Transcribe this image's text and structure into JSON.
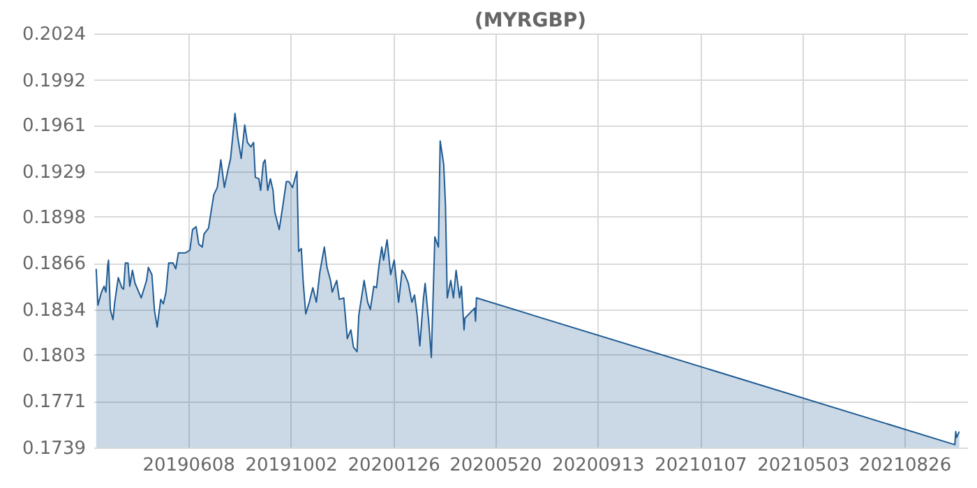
{
  "chart_data": {
    "type": "area",
    "title": "(MYRGBP)",
    "x": [
      "2019-02-24",
      "2019-02-26",
      "2019-03-02",
      "2019-03-05",
      "2019-03-07",
      "2019-03-09",
      "2019-03-10",
      "2019-03-12",
      "2019-03-15",
      "2019-03-17",
      "2019-03-21",
      "2019-03-25",
      "2019-03-27",
      "2019-03-29",
      "2019-04-01",
      "2019-04-03",
      "2019-04-06",
      "2019-04-09",
      "2019-04-16",
      "2019-04-22",
      "2019-04-24",
      "2019-04-28",
      "2019-05-01",
      "2019-05-04",
      "2019-05-08",
      "2019-05-11",
      "2019-05-14",
      "2019-05-17",
      "2019-05-22",
      "2019-05-25",
      "2019-05-28",
      "2019-06-05",
      "2019-06-10",
      "2019-06-13",
      "2019-06-17",
      "2019-06-20",
      "2019-06-24",
      "2019-06-26",
      "2019-07-01",
      "2019-07-07",
      "2019-07-11",
      "2019-07-15",
      "2019-07-19",
      "2019-07-23",
      "2019-07-26",
      "2019-07-31",
      "2019-08-03",
      "2019-08-07",
      "2019-08-11",
      "2019-08-14",
      "2019-08-18",
      "2019-08-21",
      "2019-08-23",
      "2019-08-27",
      "2019-08-29",
      "2019-09-01",
      "2019-09-03",
      "2019-09-06",
      "2019-09-09",
      "2019-09-12",
      "2019-09-14",
      "2019-09-19",
      "2019-09-23",
      "2019-09-27",
      "2019-09-30",
      "2019-10-04",
      "2019-10-09",
      "2019-10-11",
      "2019-10-14",
      "2019-10-16",
      "2019-10-19",
      "2019-10-23",
      "2019-10-27",
      "2019-10-31",
      "2019-11-04",
      "2019-11-09",
      "2019-11-12",
      "2019-11-16",
      "2019-11-18",
      "2019-11-23",
      "2019-11-26",
      "2019-12-01",
      "2019-12-05",
      "2019-12-09",
      "2019-12-12",
      "2019-12-16",
      "2019-12-18",
      "2019-12-24",
      "2019-12-28",
      "2019-12-31",
      "2020-01-04",
      "2020-01-07",
      "2020-01-10",
      "2020-01-13",
      "2020-01-15",
      "2020-01-19",
      "2020-01-23",
      "2020-01-27",
      "2020-02-01",
      "2020-02-05",
      "2020-02-08",
      "2020-02-12",
      "2020-02-16",
      "2020-02-19",
      "2020-02-22",
      "2020-02-25",
      "2020-02-29",
      "2020-03-02",
      "2020-03-06",
      "2020-03-09",
      "2020-03-13",
      "2020-03-17",
      "2020-03-19",
      "2020-03-23",
      "2020-03-25",
      "2020-03-27",
      "2020-03-31",
      "2020-04-03",
      "2020-04-06",
      "2020-04-10",
      "2020-04-12",
      "2020-04-15",
      "2020-04-16",
      "2020-04-27",
      "2020-04-28",
      "2020-04-29",
      "2021-10-22",
      "2021-10-23",
      "2021-10-24",
      "2021-10-27"
    ],
    "series": [
      {
        "color": "#1f5b93",
        "values": [
          0.1862,
          0.1837,
          0.1846,
          0.185,
          0.1846,
          0.1864,
          0.1868,
          0.1834,
          0.1827,
          0.1839,
          0.1856,
          0.1849,
          0.1848,
          0.1866,
          0.1866,
          0.185,
          0.1861,
          0.1852,
          0.1842,
          0.1854,
          0.1863,
          0.1858,
          0.1833,
          0.1822,
          0.1841,
          0.1838,
          0.1846,
          0.1866,
          0.1866,
          0.1862,
          0.1873,
          0.1873,
          0.1875,
          0.1889,
          0.1891,
          0.1879,
          0.1877,
          0.1886,
          0.189,
          0.1913,
          0.1918,
          0.1937,
          0.1918,
          0.193,
          0.1938,
          0.1969,
          0.1953,
          0.1938,
          0.1961,
          0.1949,
          0.1946,
          0.1949,
          0.1925,
          0.1924,
          0.1916,
          0.1935,
          0.1937,
          0.1916,
          0.1924,
          0.1916,
          0.1901,
          0.1889,
          0.1905,
          0.1922,
          0.1922,
          0.1918,
          0.1929,
          0.1874,
          0.1876,
          0.1854,
          0.1831,
          0.1839,
          0.1849,
          0.1839,
          0.186,
          0.1877,
          0.1863,
          0.1854,
          0.1846,
          0.1854,
          0.1841,
          0.1842,
          0.1814,
          0.182,
          0.1808,
          0.1805,
          0.183,
          0.1854,
          0.1839,
          0.1834,
          0.185,
          0.1849,
          0.1865,
          0.1877,
          0.1868,
          0.1882,
          0.1858,
          0.1868,
          0.1839,
          0.1861,
          0.1858,
          0.1852,
          0.1839,
          0.1844,
          0.183,
          0.1809,
          0.1841,
          0.1852,
          0.1826,
          0.1801,
          0.1884,
          0.1877,
          0.195,
          0.1934,
          0.1906,
          0.1842,
          0.1854,
          0.1842,
          0.1861,
          0.1842,
          0.185,
          0.182,
          0.1828,
          0.1835,
          0.1826,
          0.1842,
          0.1741,
          0.175,
          0.1746,
          0.175
        ]
      }
    ],
    "xlim": [
      "2019-02-21",
      "2021-11-05"
    ],
    "xticks": [
      {
        "value": "2019-06-08",
        "label": "20190608"
      },
      {
        "value": "2019-10-02",
        "label": "20191002"
      },
      {
        "value": "2020-01-26",
        "label": "20200126"
      },
      {
        "value": "2020-05-20",
        "label": "20200520"
      },
      {
        "value": "2020-09-13",
        "label": "20200913"
      },
      {
        "value": "2021-01-07",
        "label": "20210107"
      },
      {
        "value": "2021-05-03",
        "label": "20210503"
      },
      {
        "value": "2021-08-26",
        "label": "20210826"
      }
    ],
    "ylim": [
      0.1739,
      0.2024
    ],
    "yticks": [
      0.1739,
      0.1771,
      0.1803,
      0.1834,
      0.1866,
      0.1898,
      0.1929,
      0.1961,
      0.1992,
      0.2024
    ],
    "grid": true
  }
}
